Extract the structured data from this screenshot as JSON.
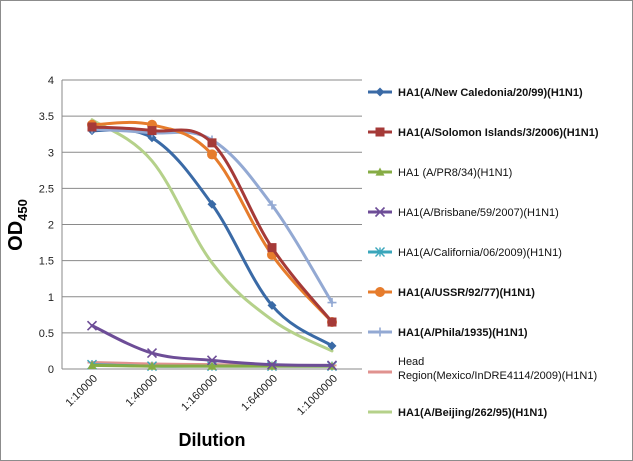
{
  "chart_data": {
    "type": "line",
    "title": "",
    "xlabel": "Dilution",
    "ylabel_main": "OD",
    "ylabel_sub": "450",
    "categories": [
      "1:10000",
      "1:40000",
      "1:160000",
      "1:640000",
      "1:1000000"
    ],
    "ylim": [
      0,
      4
    ],
    "yticks": [
      "0",
      "0.5",
      "1",
      "1.5",
      "2",
      "2.5",
      "3",
      "3.5",
      "4"
    ],
    "grid": true,
    "legend_position": "right",
    "series": [
      {
        "name": "HA1(A/New Caledonia/20/99)(H1N1)",
        "bold": true,
        "color": "#3a6aa6",
        "marker": "diamond",
        "values": [
          3.3,
          3.2,
          2.28,
          0.88,
          0.32
        ]
      },
      {
        "name": "HA1(A/Solomon Islands/3/2006)(H1N1)",
        "bold": true,
        "color": "#a53a38",
        "marker": "square",
        "values": [
          3.35,
          3.3,
          3.13,
          1.68,
          0.65
        ]
      },
      {
        "name": "HA1 (A/PR8/34)(H1N1)",
        "bold": false,
        "color": "#86ac45",
        "marker": "triangle",
        "values": [
          0.05,
          0.04,
          0.04,
          0.04,
          0.04
        ]
      },
      {
        "name": "HA1(A/Brisbane/59/2007)(H1N1)",
        "bold": false,
        "color": "#6d4d97",
        "marker": "x",
        "values": [
          0.6,
          0.22,
          0.12,
          0.06,
          0.05
        ]
      },
      {
        "name": "HA1(A/California/06/2009)(H1N1)",
        "bold": false,
        "color": "#3aa6bb",
        "marker": "asterisk",
        "values": [
          0.06,
          0.04,
          0.04,
          0.04,
          0.04
        ]
      },
      {
        "name": "HA1(A/USSR/92/77)(H1N1)",
        "bold": true,
        "color": "#e67c2c",
        "marker": "circle",
        "values": [
          3.38,
          3.38,
          2.97,
          1.58,
          0.65
        ]
      },
      {
        "name": "HA1(A/Phila/1935)(H1N1)",
        "bold": true,
        "color": "#93a9d3",
        "marker": "plus",
        "values": [
          3.32,
          3.27,
          3.17,
          2.27,
          0.92
        ]
      },
      {
        "name": "Head Region(Mexico/InDRE4114/2009)(H1N1)",
        "bold": false,
        "color": "#e0928f",
        "marker": "dash",
        "values": [
          0.09,
          0.07,
          0.06,
          0.05,
          0.05
        ]
      },
      {
        "name": "HA1(A/Beijing/262/95)(H1N1)",
        "bold": true,
        "color": "#b5d18a",
        "marker": "none",
        "values": [
          3.45,
          2.88,
          1.47,
          0.68,
          0.25
        ]
      }
    ],
    "legend_lines": [
      [
        "HA1(A/New Caledonia/20/99)(H1N1)"
      ],
      [
        "HA1(A/Solomon Islands/3/2006)(H1N1)"
      ],
      [
        "HA1 (A/PR8/34)(H1N1)"
      ],
      [
        "HA1(A/Brisbane/59/2007)(H1N1)"
      ],
      [
        "HA1(A/California/06/2009)(H1N1)"
      ],
      [
        "HA1(A/USSR/92/77)(H1N1)"
      ],
      [
        "HA1(A/Phila/1935)(H1N1)"
      ],
      [
        "Head",
        "Region(Mexico/InDRE4114/2009)(H1N1)"
      ],
      [
        "HA1(A/Beijing/262/95)(H1N1)"
      ]
    ]
  }
}
